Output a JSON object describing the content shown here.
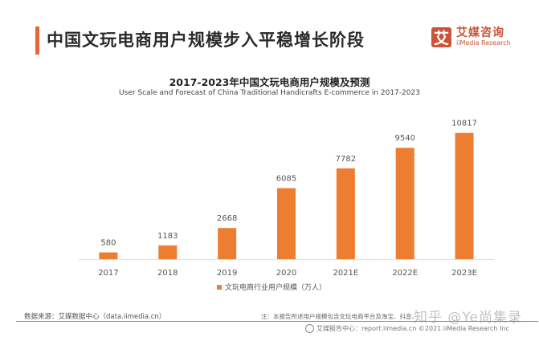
{
  "header": {
    "title": "中国文玩电商用户规模步入平稳增长阶段",
    "logo_mark": "艾",
    "logo_cn": "艾媒咨询",
    "logo_en": "iiMedia Research"
  },
  "colors": {
    "accent": "#e8653a",
    "bar": "#ed7d31",
    "logo": "#c8543a"
  },
  "chart_data": {
    "type": "bar",
    "title": "2017-2023年中国文玩电商用户规模及预测",
    "subtitle": "User Scale and Forecast of China Traditional Handicrafts E-commerce in 2017-2023",
    "categories": [
      "2017",
      "2018",
      "2019",
      "2020",
      "2021E",
      "2022E",
      "2023E"
    ],
    "series": [
      {
        "name": "文玩电商行业用户规模（万人）",
        "values": [
          580,
          1183,
          2668,
          6085,
          7782,
          9540,
          10817
        ]
      }
    ],
    "data_labels": [
      "580",
      "1183",
      "2668",
      "6085",
      "7782",
      "9540",
      "10817"
    ],
    "xlabel": "",
    "ylabel": "",
    "ylim": [
      0,
      11000
    ],
    "grid": false,
    "legend_position": "bottom-center"
  },
  "legend": {
    "label": "文玩电商行业用户规模（万人）"
  },
  "footer": {
    "source": "数据来源：艾媒数据中心（data.iimedia.cn）",
    "note": "注：本报告所述用户规模包含文玩电商平台及淘宝、抖音、",
    "report": "艾媒报告中心：report.iimedia.cn  ©2021  iiMedia Research  Inc",
    "watermark": "知乎 @Ye尚集录"
  }
}
